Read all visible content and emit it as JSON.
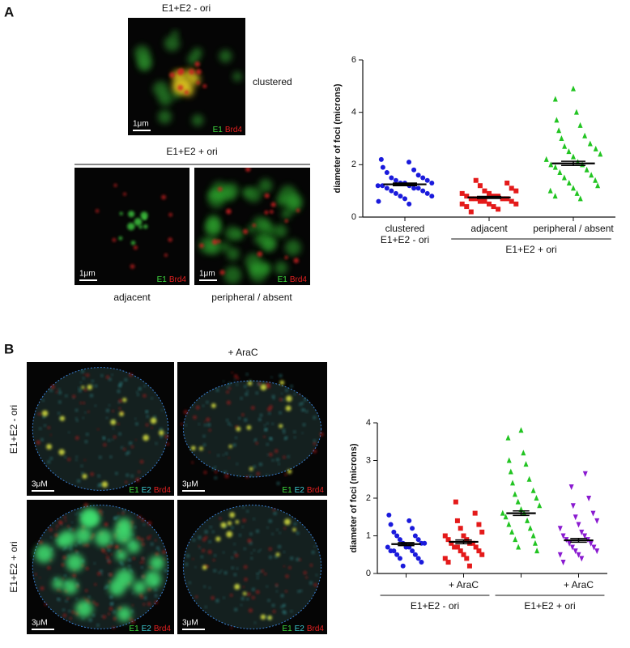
{
  "panel_a": {
    "label": "A",
    "top_title": "E1+E2 - ori",
    "top_caption": "clustered",
    "ori_title": "E1+E2 + ori",
    "images": [
      {
        "scale": "1μm",
        "channels": [
          "E1",
          "Brd4"
        ]
      },
      {
        "scale": "1μm",
        "channels": [
          "E1",
          "Brd4"
        ],
        "caption": "adjacent"
      },
      {
        "scale": "1μm",
        "channels": [
          "E1",
          "Brd4"
        ],
        "caption": "peripheral / absent"
      }
    ]
  },
  "panel_b": {
    "label": "B",
    "column_title": "+ AraC",
    "row_labels": [
      "E1+E2 - ori",
      "E1+E2 + ori"
    ],
    "images": [
      {
        "scale": "3μM",
        "channels": [
          "E1",
          "E2",
          "Brd4"
        ]
      },
      {
        "scale": "3μM",
        "channels": [
          "E1",
          "E2",
          "Brd4"
        ]
      },
      {
        "scale": "3μM",
        "channels": [
          "E1",
          "E2",
          "Brd4"
        ]
      },
      {
        "scale": "3μM",
        "channels": [
          "E1",
          "E2",
          "Brd4"
        ]
      }
    ]
  },
  "chart_data": [
    {
      "type": "strip",
      "ylabel": "diameter of foci (microns)",
      "ylim": [
        0,
        6
      ],
      "yticks": [
        0,
        2,
        4,
        6
      ],
      "categories": [
        "clustered",
        "adjacent",
        "peripheral / absent"
      ],
      "groups": [
        {
          "label": "E1+E2 - ori",
          "categories": [
            0
          ]
        },
        {
          "label": "E1+E2 + ori",
          "categories": [
            1,
            2
          ]
        }
      ],
      "strips": [
        {
          "color": "#1a1adc",
          "marker": "circle",
          "mean": 1.25,
          "error": 0.05,
          "values": [
            2.2,
            2.1,
            1.9,
            1.8,
            1.7,
            1.6,
            1.5,
            1.5,
            1.4,
            1.4,
            1.3,
            1.3,
            1.3,
            1.2,
            1.2,
            1.2,
            1.1,
            1.1,
            1.1,
            1.0,
            1.0,
            0.9,
            0.9,
            0.8,
            0.8,
            0.7,
            0.6,
            0.5
          ]
        },
        {
          "color": "#e41a1a",
          "marker": "square",
          "mean": 0.75,
          "error": 0.04,
          "values": [
            1.4,
            1.3,
            1.2,
            1.1,
            1.0,
            1.0,
            0.9,
            0.9,
            0.8,
            0.8,
            0.8,
            0.7,
            0.7,
            0.7,
            0.7,
            0.6,
            0.6,
            0.6,
            0.5,
            0.5,
            0.5,
            0.4,
            0.4,
            0.3,
            0.2
          ]
        },
        {
          "color": "#22c422",
          "marker": "triangle",
          "mean": 2.05,
          "error": 0.08,
          "values": [
            4.9,
            4.5,
            4.0,
            3.7,
            3.5,
            3.3,
            3.1,
            3.0,
            2.8,
            2.7,
            2.6,
            2.5,
            2.4,
            2.3,
            2.2,
            2.1,
            2.0,
            2.0,
            1.9,
            1.8,
            1.7,
            1.6,
            1.5,
            1.4,
            1.3,
            1.2,
            1.1,
            1.0,
            0.9,
            0.8,
            0.7
          ]
        }
      ]
    },
    {
      "type": "strip",
      "ylabel": "diameter of foci (microns)",
      "ylim": [
        0,
        4
      ],
      "yticks": [
        0,
        1,
        2,
        3,
        4
      ],
      "categories": [
        null,
        "+ AraC",
        null,
        "+ AraC"
      ],
      "groups": [
        {
          "label": "E1+E2 - ori",
          "categories": [
            0,
            1
          ]
        },
        {
          "label": "E1+E2 + ori",
          "categories": [
            2,
            3
          ]
        }
      ],
      "strips": [
        {
          "color": "#1a1adc",
          "marker": "circle",
          "mean": 0.78,
          "error": 0.04,
          "values": [
            1.55,
            1.4,
            1.3,
            1.2,
            1.1,
            1.0,
            1.0,
            0.9,
            0.9,
            0.8,
            0.8,
            0.8,
            0.7,
            0.7,
            0.7,
            0.6,
            0.6,
            0.6,
            0.5,
            0.5,
            0.4,
            0.4,
            0.3,
            0.2
          ]
        },
        {
          "color": "#e41a1a",
          "marker": "square",
          "mean": 0.84,
          "error": 0.05,
          "values": [
            1.9,
            1.6,
            1.4,
            1.3,
            1.2,
            1.1,
            1.0,
            1.0,
            0.9,
            0.9,
            0.8,
            0.8,
            0.8,
            0.7,
            0.7,
            0.7,
            0.6,
            0.6,
            0.5,
            0.5,
            0.4,
            0.4,
            0.3,
            0.2
          ]
        },
        {
          "color": "#22c422",
          "marker": "triangle",
          "mean": 1.6,
          "error": 0.06,
          "values": [
            3.8,
            3.6,
            3.2,
            3.0,
            2.9,
            2.7,
            2.5,
            2.4,
            2.2,
            2.1,
            2.0,
            1.9,
            1.8,
            1.7,
            1.6,
            1.6,
            1.5,
            1.4,
            1.3,
            1.2,
            1.1,
            1.0,
            0.9,
            0.8,
            0.7,
            0.6
          ]
        },
        {
          "color": "#8a1ad0",
          "marker": "triangle-down",
          "mean": 0.88,
          "error": 0.05,
          "values": [
            2.65,
            2.3,
            2.0,
            1.8,
            1.6,
            1.5,
            1.4,
            1.3,
            1.2,
            1.1,
            1.0,
            1.0,
            0.9,
            0.9,
            0.8,
            0.8,
            0.7,
            0.7,
            0.6,
            0.6,
            0.5,
            0.5,
            0.4,
            0.3
          ]
        }
      ]
    }
  ]
}
